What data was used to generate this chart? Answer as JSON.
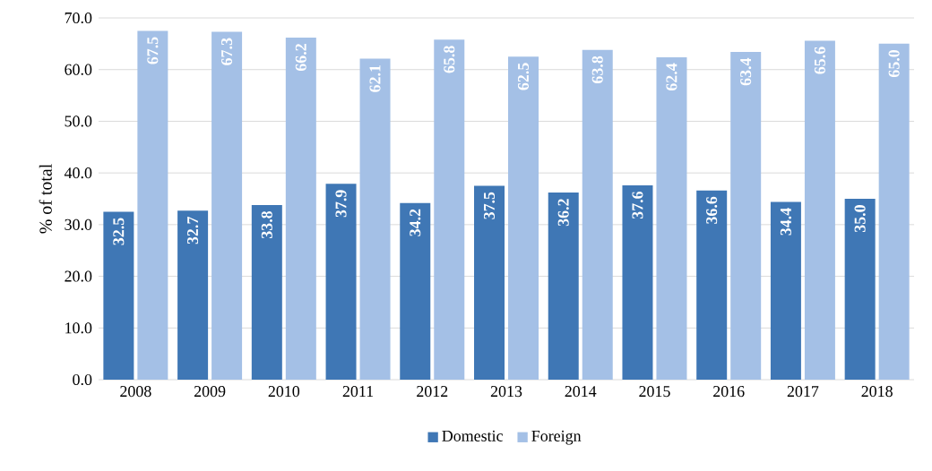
{
  "chart_data": {
    "type": "bar",
    "ylabel": "% of total",
    "categories": [
      "2008",
      "2009",
      "2010",
      "2011",
      "2012",
      "2013",
      "2014",
      "2015",
      "2016",
      "2017",
      "2018"
    ],
    "series": [
      {
        "name": "Domestic",
        "color": "#3f77b5",
        "values": [
          32.5,
          32.7,
          33.8,
          37.9,
          34.2,
          37.5,
          36.2,
          37.6,
          36.6,
          34.4,
          35.0
        ],
        "value_labels": [
          "32.5",
          "32.7",
          "33.8",
          "37.9",
          "34.2",
          "37.5",
          "36.2",
          "37.6",
          "36.6",
          "34.4",
          "35.0"
        ]
      },
      {
        "name": "Foreign",
        "color": "#a4c0e6",
        "values": [
          67.5,
          67.3,
          66.2,
          62.1,
          65.8,
          62.5,
          63.8,
          62.4,
          63.4,
          65.6,
          65.0
        ],
        "value_labels": [
          "67.5",
          "67.3",
          "66.2",
          "62.1",
          "65.8",
          "62.5",
          "63.8",
          "62.4",
          "63.4",
          "65.6",
          "65.0"
        ]
      }
    ],
    "ylim": [
      0,
      70
    ],
    "yticks": [
      {
        "value": 0,
        "label": "0.0"
      },
      {
        "value": 10,
        "label": "10.0"
      },
      {
        "value": 20,
        "label": "20.0"
      },
      {
        "value": 30,
        "label": "30.0"
      },
      {
        "value": 40,
        "label": "40.0"
      },
      {
        "value": 50,
        "label": "50.0"
      },
      {
        "value": 60,
        "label": "60.0"
      },
      {
        "value": 70,
        "label": "70.0"
      }
    ],
    "grid": "y",
    "legend": "bottom"
  }
}
